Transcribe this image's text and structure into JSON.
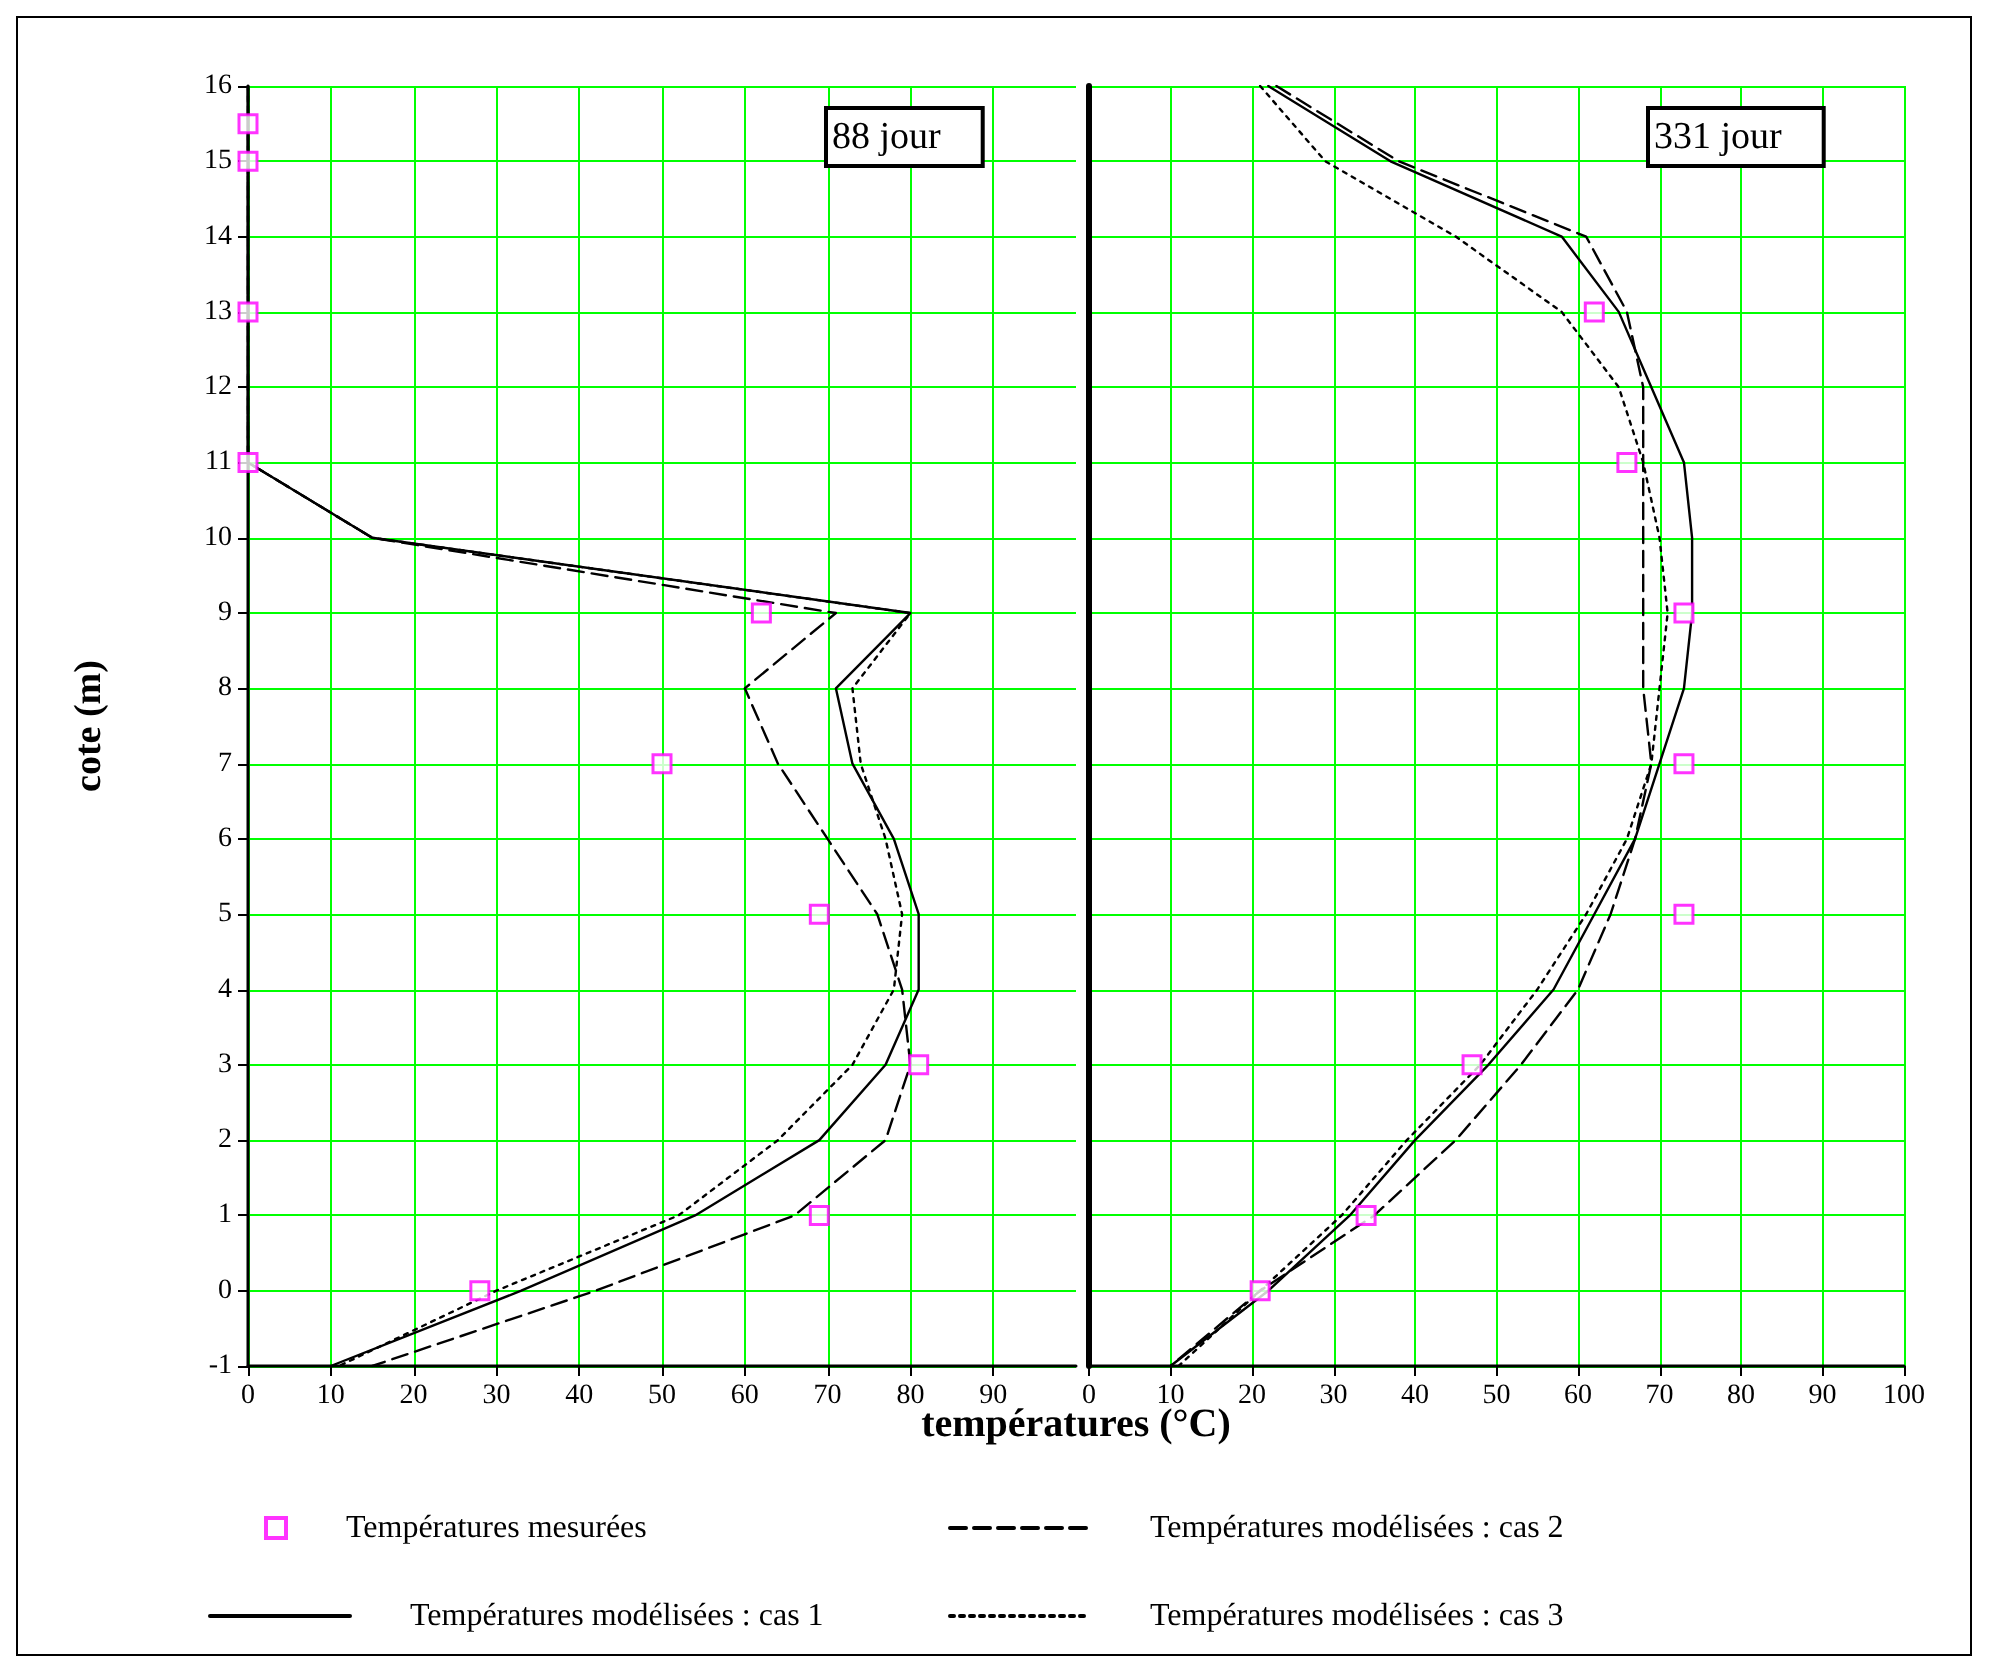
{
  "chart_data": [
    {
      "type": "line",
      "xlabel": "températures (°C)",
      "ylabel": "cote (m)",
      "annotations": [
        "88 jour"
      ],
      "xlim": [
        0,
        100
      ],
      "xticks": [
        0,
        10,
        20,
        30,
        40,
        50,
        60,
        70,
        80,
        90
      ],
      "ylim": [
        -1,
        16
      ],
      "yticks": [
        -1,
        0,
        1,
        2,
        3,
        4,
        5,
        6,
        7,
        8,
        9,
        10,
        11,
        12,
        13,
        14,
        15,
        16
      ],
      "grid": true,
      "legend": "bottom",
      "series": [
        {
          "name": "Températures mesurées",
          "type": "scatter",
          "marker": "square",
          "color": "#ff00ff",
          "x": [
            0,
            0,
            0,
            0,
            62,
            50,
            69,
            81,
            69,
            28
          ],
          "values": [
            15.5,
            15,
            13,
            11,
            9,
            7,
            5,
            3,
            1,
            0
          ]
        },
        {
          "name": "Températures modélisées : cas 1",
          "color": "#000000",
          "line_style": "solid",
          "x": [
            0,
            0,
            15,
            80,
            71,
            73,
            78,
            81,
            81,
            77,
            69,
            54,
            33,
            10
          ],
          "values": [
            16,
            11,
            10,
            9,
            8,
            7,
            6,
            5,
            4,
            3,
            2,
            1,
            0,
            -1
          ]
        },
        {
          "name": "Températures modélisées : cas 2",
          "color": "#000000",
          "line_style": "dashed",
          "x": [
            0,
            0,
            15,
            71,
            60,
            64,
            70,
            76,
            79,
            80,
            77,
            66,
            42,
            15
          ],
          "values": [
            16,
            11,
            10,
            9,
            8,
            7,
            6,
            5,
            4,
            3,
            2,
            1,
            0,
            -1
          ]
        },
        {
          "name": "Températures modélisées : cas 3",
          "color": "#000000",
          "line_style": "dotted",
          "x": [
            0,
            0,
            15,
            80,
            73,
            74,
            77,
            79,
            78,
            73,
            64,
            52,
            30,
            11
          ],
          "values": [
            16,
            11,
            10,
            9,
            8,
            7,
            6,
            5,
            4,
            3,
            2,
            1,
            0,
            -1
          ]
        }
      ]
    },
    {
      "type": "line",
      "annotations": [
        "331 jour"
      ],
      "xlim": [
        0,
        100
      ],
      "xticks": [
        0,
        10,
        20,
        30,
        40,
        50,
        60,
        70,
        80,
        90,
        100
      ],
      "ylim": [
        -1,
        16
      ],
      "yticks": [
        -1,
        0,
        1,
        2,
        3,
        4,
        5,
        6,
        7,
        8,
        9,
        10,
        11,
        12,
        13,
        14,
        15,
        16
      ],
      "tick_labels": "x",
      "grid": true,
      "series": [
        {
          "type": "scatter",
          "marker": "square",
          "color": "#ff00ff",
          "x": [
            62,
            66,
            73,
            73,
            73,
            47,
            34,
            21
          ],
          "values": [
            13,
            11,
            9,
            7,
            5,
            3,
            1,
            0
          ]
        },
        {
          "color": "#000000",
          "line_style": "solid",
          "x": [
            22,
            37,
            58,
            65,
            69,
            73,
            74,
            74,
            73,
            70,
            67,
            62,
            57,
            49,
            40,
            32,
            22,
            10
          ],
          "values": [
            16,
            15,
            14,
            13,
            12,
            11,
            10,
            9,
            8,
            7,
            6,
            5,
            4,
            3,
            2,
            1,
            0,
            -1
          ]
        },
        {
          "color": "#000000",
          "line_style": "dashed",
          "x": [
            23,
            38,
            61,
            66,
            68,
            68,
            68,
            68,
            68,
            69,
            67,
            64,
            60,
            53,
            45,
            35,
            21,
            10
          ],
          "values": [
            16,
            15,
            14,
            13,
            12,
            11,
            10,
            9,
            8,
            7,
            6,
            5,
            4,
            3,
            2,
            1,
            0,
            -1
          ]
        },
        {
          "color": "#000000",
          "line_style": "dotted",
          "x": [
            21,
            29,
            45,
            58,
            65,
            68,
            70,
            71,
            70,
            69,
            66,
            61,
            55,
            48,
            39,
            31,
            21,
            11
          ],
          "values": [
            16,
            15,
            14,
            13,
            12,
            11,
            10,
            9,
            8,
            7,
            6,
            5,
            4,
            3,
            2,
            1,
            0,
            -1
          ]
        }
      ]
    }
  ]
}
